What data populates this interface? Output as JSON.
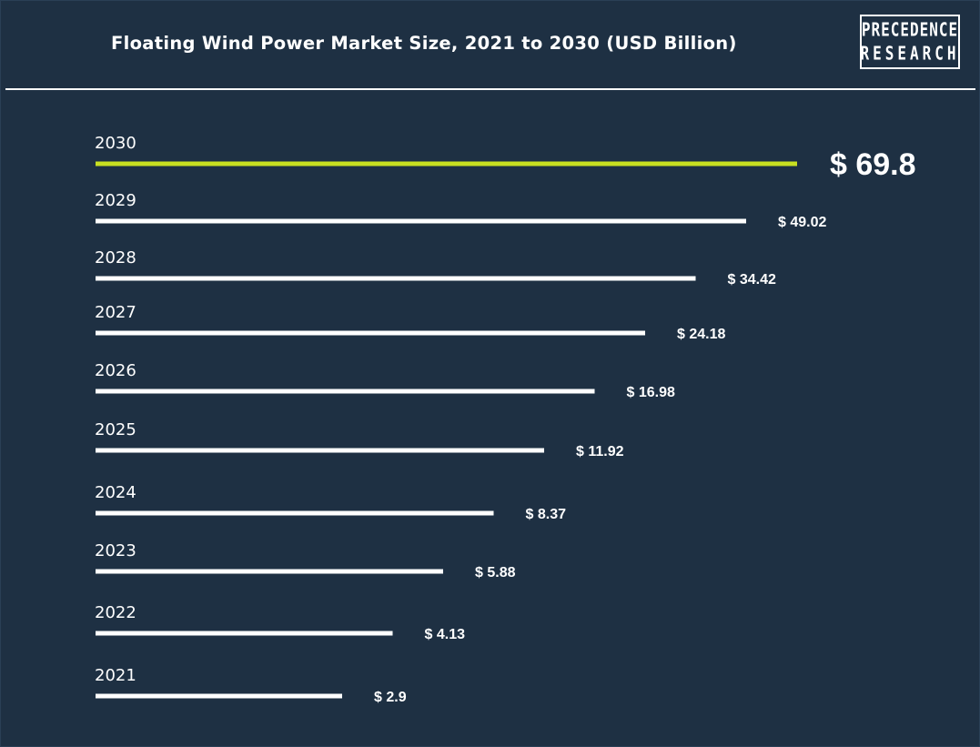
{
  "title": "Floating Wind Power Market Size, 2021 to 2030 (USD Billion)",
  "logo": {
    "line1": "PRECEDENCE",
    "line2": "RESEARCH"
  },
  "colors": {
    "background": "#1e3043",
    "bar": "#ffffff",
    "highlight": "#c8e021",
    "text": "#ffffff"
  },
  "chart_data": {
    "type": "bar",
    "orientation": "horizontal",
    "title": "Floating Wind Power Market Size, 2021 to 2030 (USD Billion)",
    "categories": [
      "2030",
      "2029",
      "2028",
      "2027",
      "2026",
      "2025",
      "2024",
      "2023",
      "2022",
      "2021"
    ],
    "values": [
      69.8,
      49.02,
      34.42,
      24.18,
      16.98,
      11.92,
      8.37,
      5.88,
      4.13,
      2.9
    ],
    "value_labels": [
      "$ 69.8",
      "$ 49.02",
      "$ 34.42",
      "$ 24.18",
      "$ 16.98",
      "$ 11.92",
      "$ 8.37",
      "$ 5.88",
      "$ 4.13",
      "$ 2.9"
    ],
    "highlight_category": "2030"
  }
}
